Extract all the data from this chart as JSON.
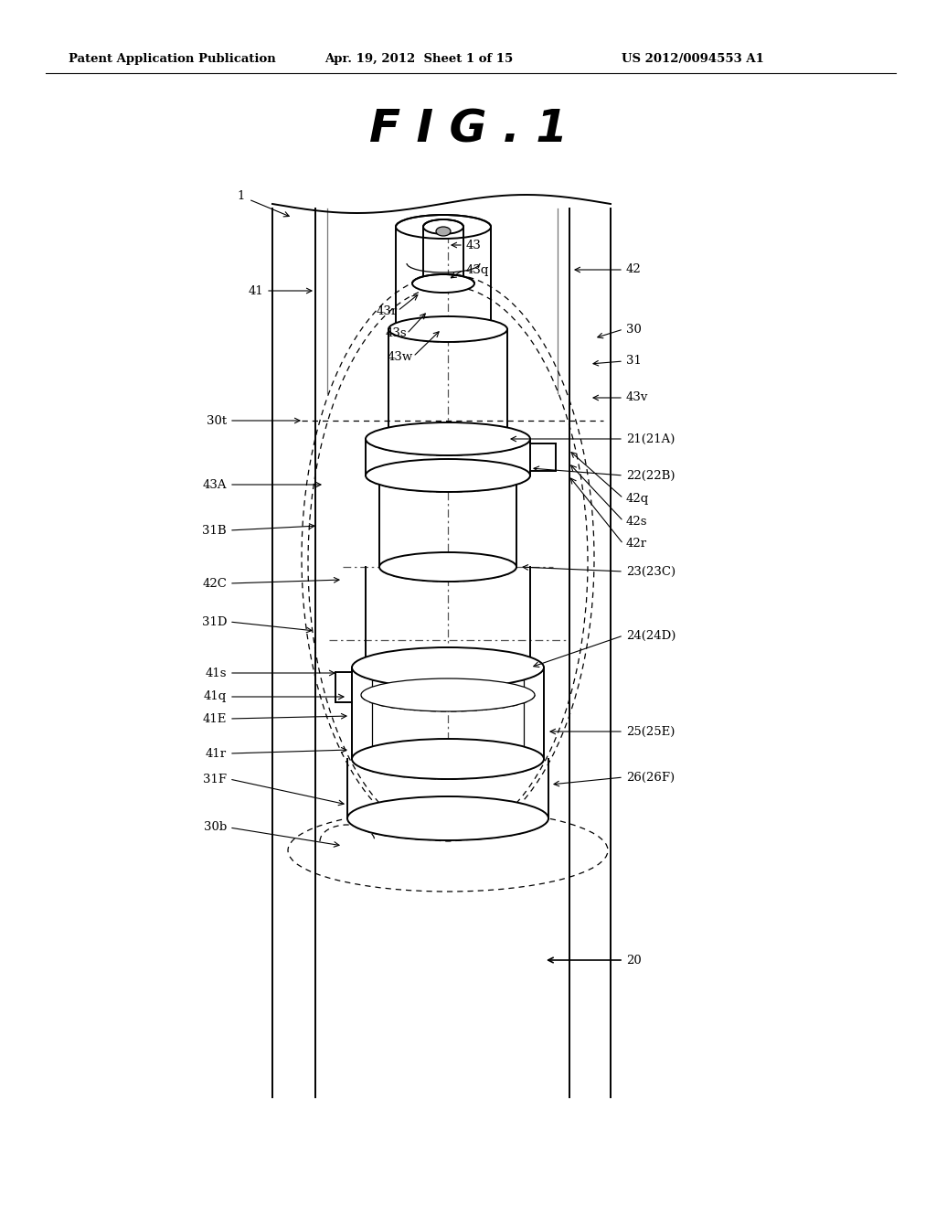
{
  "bg_color": "#ffffff",
  "header_text": "Patent Application Publication",
  "header_date": "Apr. 19, 2012  Sheet 1 of 15",
  "header_patent": "US 2012/0094553 A1",
  "fig_title": "F I G . 1"
}
